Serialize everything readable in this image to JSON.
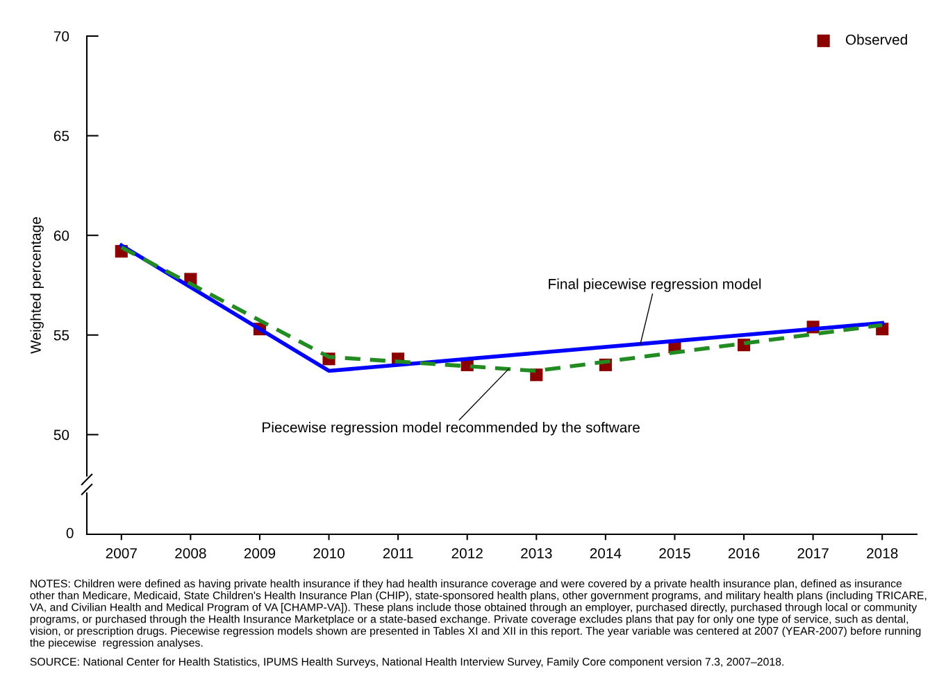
{
  "chart_data": {
    "type": "scatter",
    "ylabel": "Weighted percentage",
    "x": [
      2007,
      2008,
      2009,
      2010,
      2011,
      2012,
      2013,
      2014,
      2015,
      2016,
      2017,
      2018
    ],
    "series": [
      {
        "name": "Observed",
        "color": "#8b0000",
        "marker": "square",
        "values": [
          59.2,
          57.8,
          55.3,
          53.8,
          53.8,
          53.5,
          53.0,
          53.5,
          54.4,
          54.5,
          55.4,
          55.3
        ]
      },
      {
        "type": "line",
        "color": "#0000ff",
        "line_style": "solid",
        "x": [
          2007,
          2010,
          2018
        ],
        "values": [
          59.5,
          53.2,
          55.6
        ]
      },
      {
        "type": "line",
        "color": "#228b22",
        "line_style": "dashed",
        "x": [
          2007,
          2010,
          2013,
          2018
        ],
        "values": [
          59.4,
          53.9,
          53.2,
          55.5
        ]
      }
    ],
    "xlim": [
      2006.5,
      2018.5
    ],
    "xticks": [
      2007,
      2008,
      2009,
      2010,
      2011,
      2012,
      2013,
      2014,
      2015,
      2016,
      2017,
      2018
    ],
    "ylim": [
      45,
      70
    ],
    "yticks": [
      50,
      55,
      60,
      65,
      70
    ],
    "grid": false,
    "legend": "top right",
    "annotations": [
      {
        "text": "Final piecewise regression model",
        "x": 2014.5,
        "y": 54.5
      },
      {
        "text": "Piecewise regression model recommended by the software",
        "x": 2012.6,
        "y": 53.3
      },
      "0",
      "NOTES: Children were defined as having private health insurance if they had health insurance coverage and were covered by a private health insurance plan, defined as insurance other than Medicare, Medicaid, State Children's Health Insurance Plan (CHIP), state-sponsored health plans, other government programs, and military health plans (including TRICARE, VA, and Civilian Health and Medical Program of VA [CHAMP-VA]). These plans include those obtained through an employer, purchased directly, purchased through local or community programs, or purchased through the Health Insurance Marketplace or a state-based exchange. Private coverage excludes plans that pay for only one type of service, such as dental, vision, or prescription drugs. Piecewise regression models shown are presented in Tables XI and XII in this report. The year variable was centered at 2007 (YEAR-2007) before running the piecewise  regression analyses.",
      "SOURCE: National Center for Health Statistics, IPUMS Health Surveys, National Health Interview Survey, Family Core component version 7.3, 2007–2018."
    ]
  }
}
